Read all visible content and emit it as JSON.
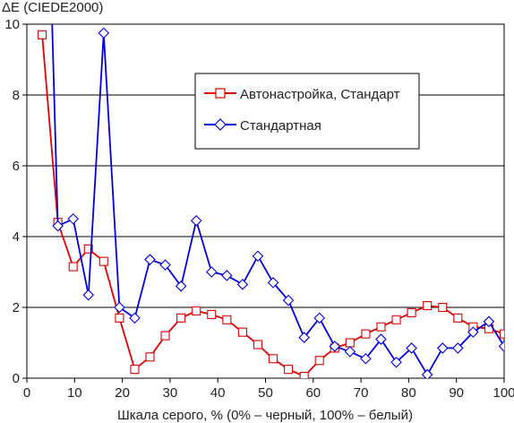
{
  "chart_data": {
    "type": "line",
    "title": "",
    "ylabel": "ΔE (CIEDE2000)",
    "xlabel": "Шкала серого, % (0% – черный, 100% – белый)",
    "xlim": [
      0,
      100
    ],
    "ylim": [
      0,
      10
    ],
    "xticks": [
      0,
      10,
      20,
      30,
      40,
      50,
      60,
      70,
      80,
      90,
      100
    ],
    "yticks": [
      0,
      2,
      4,
      6,
      8,
      10
    ],
    "grid": "horizontal",
    "legend_position": "upper-right",
    "series": [
      {
        "name": "Автонастройка, Стандарт",
        "color": "#e00000",
        "marker": "square",
        "x": [
          3.2,
          6.5,
          9.7,
          12.9,
          16.1,
          19.4,
          22.6,
          25.8,
          29.0,
          32.3,
          35.5,
          38.7,
          41.9,
          45.2,
          48.4,
          51.6,
          54.8,
          58.1,
          61.3,
          64.5,
          67.7,
          71.0,
          74.2,
          77.4,
          80.6,
          83.9,
          87.1,
          90.3,
          93.5,
          96.8,
          100.0
        ],
        "y": [
          9.7,
          4.4,
          3.15,
          3.65,
          3.3,
          1.7,
          0.25,
          0.6,
          1.2,
          1.7,
          1.9,
          1.8,
          1.65,
          1.3,
          0.95,
          0.55,
          0.25,
          0.05,
          0.5,
          0.85,
          1.0,
          1.25,
          1.45,
          1.65,
          1.85,
          2.05,
          2.0,
          1.7,
          1.45,
          1.4,
          1.25
        ]
      },
      {
        "name": "Стандартная",
        "color": "#0000dd",
        "marker": "diamond",
        "x": [
          3.2,
          6.5,
          9.7,
          12.9,
          16.1,
          19.4,
          22.6,
          25.8,
          29.0,
          32.3,
          35.5,
          38.7,
          41.9,
          45.2,
          48.4,
          51.6,
          54.8,
          58.1,
          61.3,
          64.5,
          67.7,
          71.0,
          74.2,
          77.4,
          80.6,
          83.9,
          87.1,
          90.3,
          93.5,
          96.8,
          100.0
        ],
        "y": [
          20.0,
          4.3,
          4.5,
          2.35,
          9.75,
          2.0,
          1.7,
          3.35,
          3.2,
          2.6,
          4.45,
          3.0,
          2.9,
          2.65,
          3.45,
          2.7,
          2.2,
          1.15,
          1.7,
          0.9,
          0.75,
          0.55,
          1.1,
          0.45,
          0.85,
          0.1,
          0.85,
          0.85,
          1.3,
          1.6,
          0.9
        ]
      }
    ]
  }
}
